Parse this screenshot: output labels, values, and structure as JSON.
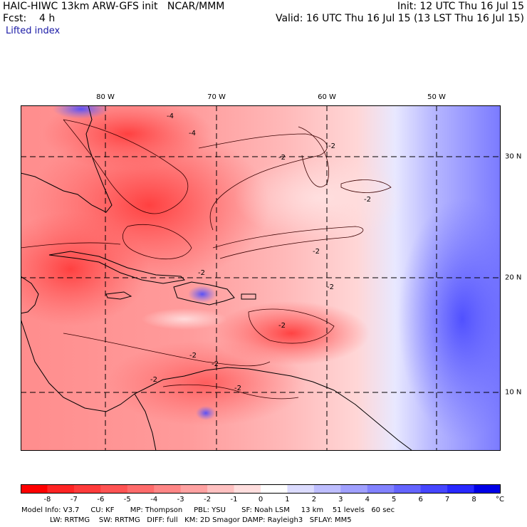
{
  "header": {
    "title": "HAIC-HIWC 13km ARW-GFS init   NCAR/MMM",
    "fcst": "Fcst:    4 h",
    "init": "Init: 12 UTC Thu 16 Jul 15",
    "valid": "Valid: 16 UTC Thu 16 Jul 15 (13 LST Thu 16 Jul 15)",
    "field": "Lifted index"
  },
  "axes": {
    "lon_labels": [
      "80 W",
      "70 W",
      "60 W",
      "50 W"
    ],
    "lat_labels": [
      "30 N",
      "20 N",
      "10 N"
    ]
  },
  "colorbar": {
    "labels": [
      "-8",
      "-7",
      "-6",
      "-5",
      "-4",
      "-3",
      "-2",
      "-1",
      "0",
      "1",
      "2",
      "3",
      "4",
      "5",
      "6",
      "7",
      "8"
    ],
    "unit": "°C",
    "colors": [
      "#ff0000",
      "#ff2424",
      "#ff3b3b",
      "#ff5353",
      "#ff6b6b",
      "#ff8686",
      "#ffa2a2",
      "#ffc1c1",
      "#ffdede",
      "#ffffff",
      "#dcdcff",
      "#bebeff",
      "#a0a0ff",
      "#8282ff",
      "#6464ff",
      "#4646ff",
      "#2828ff",
      "#0000e6"
    ]
  },
  "contour_labels": [
    "-4",
    "-4",
    "-2",
    "-2",
    "-2",
    "-2",
    "-2",
    "-2",
    "-2",
    "-2",
    "-2",
    "-2",
    "-2"
  ],
  "footer": {
    "line1": "Model Info: V3.7     CU: KF       MP: Thompson     PBL: YSU       SF: Noah LSM     13 km    51 levels   60 sec",
    "line2": "LW: RRTMG    SW: RRTMG   DIFF: full   KM: 2D Smagor DAMP: Rayleigh3   SFLAY: MM5"
  }
}
